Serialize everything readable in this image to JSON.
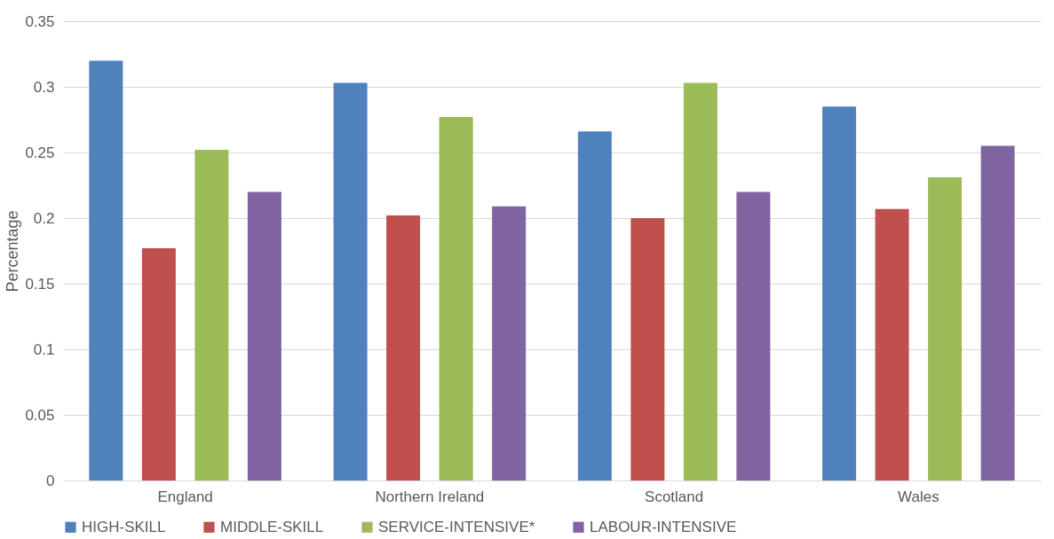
{
  "chart_data": {
    "type": "bar",
    "ylabel": "Percentage",
    "categories": [
      "England",
      "Northern Ireland",
      "Scotland",
      "Wales"
    ],
    "series": [
      {
        "name": "HIGH-SKILL",
        "color": "#4f81bd",
        "values": [
          0.32,
          0.303,
          0.266,
          0.285
        ]
      },
      {
        "name": "MIDDLE-SKILL",
        "color": "#c0504d",
        "values": [
          0.177,
          0.202,
          0.2,
          0.207
        ]
      },
      {
        "name": "SERVICE-INTENSIVE*",
        "color": "#9bbb59",
        "values": [
          0.252,
          0.277,
          0.303,
          0.231
        ]
      },
      {
        "name": "LABOUR-INTENSIVE",
        "color": "#8064a2",
        "values": [
          0.22,
          0.209,
          0.22,
          0.255
        ]
      }
    ],
    "ylim": [
      0,
      0.35
    ],
    "yticks": [
      0,
      0.05,
      0.1,
      0.15,
      0.2,
      0.25,
      0.3,
      0.35
    ],
    "grid": "y",
    "legend": "bottom"
  }
}
